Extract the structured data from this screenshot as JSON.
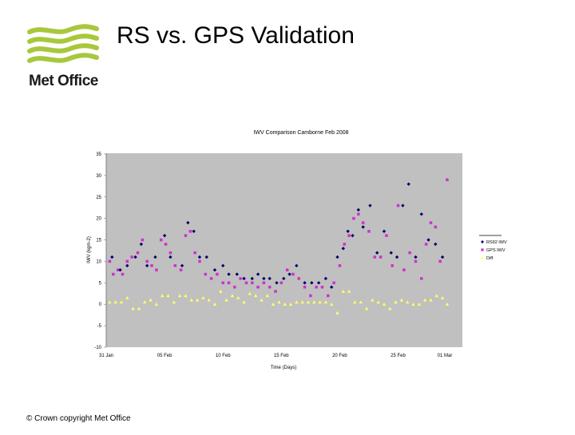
{
  "slide": {
    "title": "RS vs. GPS Validation",
    "logo_text": "Met Office",
    "footer": "© Crown copyright   Met Office"
  },
  "chart_data": {
    "type": "scatter",
    "title": "IWV Comparison Camborne Feb 2008",
    "xlabel": "Time (Days)",
    "ylabel": "IWV (kgm-2)",
    "ylim": [
      -10,
      35
    ],
    "yticks": [
      35,
      30,
      25,
      20,
      15,
      10,
      5,
      0,
      -5,
      -10
    ],
    "xticks": [
      "31 Jan",
      "05 Feb",
      "10 Feb",
      "15 Feb",
      "20 Feb",
      "25 Feb",
      "01 Mar"
    ],
    "xtick_days": [
      0,
      5,
      10,
      15,
      20,
      25,
      29
    ],
    "xlim_days": [
      0,
      29.4
    ],
    "grid": false,
    "legend_position": "right",
    "plot_background": "#c0c0c0",
    "series": [
      {
        "name": "RS92 IWV",
        "color": "#000066",
        "marker": "diamond",
        "x": [
          0.5,
          1.2,
          1.8,
          2.5,
          3.0,
          3.5,
          4.2,
          5.0,
          5.5,
          6.5,
          7.0,
          7.5,
          8.0,
          8.6,
          9.3,
          10.0,
          10.5,
          11.2,
          11.8,
          12.5,
          13.0,
          13.5,
          14.0,
          14.6,
          15.2,
          15.7,
          16.3,
          17.0,
          17.6,
          18.2,
          18.8,
          19.3,
          19.8,
          20.3,
          20.7,
          21.1,
          21.6,
          22.0,
          22.6,
          23.2,
          23.8,
          24.4,
          24.9,
          25.4,
          25.9,
          26.5,
          27.0,
          27.6,
          28.2,
          28.8
        ],
        "values": [
          11,
          8,
          9,
          11,
          14,
          9,
          11,
          16,
          11,
          9,
          19,
          17,
          11,
          11,
          8,
          9,
          7,
          7,
          6,
          6,
          7,
          6,
          6,
          5,
          6,
          7,
          9,
          5,
          5,
          5,
          6,
          4,
          11,
          13,
          17,
          16,
          22,
          18,
          23,
          12,
          17,
          12,
          11,
          23,
          28,
          11,
          21,
          15,
          14,
          11
        ]
      },
      {
        "name": "GPS IWV",
        "color": "#cc33cc",
        "marker": "square",
        "x": [
          0.3,
          0.6,
          1.0,
          1.4,
          1.8,
          2.2,
          2.7,
          3.1,
          3.5,
          3.9,
          4.3,
          4.7,
          5.1,
          5.5,
          5.9,
          6.4,
          6.8,
          7.2,
          7.6,
          8.0,
          8.5,
          9.0,
          9.5,
          10.0,
          10.5,
          11.0,
          11.5,
          12.0,
          12.5,
          13.0,
          13.5,
          14.0,
          14.5,
          15.0,
          15.5,
          16.0,
          16.5,
          17.0,
          17.5,
          18.0,
          18.5,
          19.0,
          19.5,
          20.0,
          20.4,
          20.8,
          21.2,
          21.6,
          22.0,
          22.5,
          23.0,
          23.5,
          24.0,
          24.5,
          25.0,
          25.5,
          26.0,
          26.5,
          27.0,
          27.4,
          27.8,
          28.2,
          28.6,
          29.2
        ],
        "values": [
          10,
          7,
          8,
          7,
          10,
          11,
          12,
          15,
          10,
          9,
          8,
          15,
          14,
          12,
          9,
          8,
          16,
          17,
          12,
          10,
          7,
          6,
          7,
          5,
          5,
          4,
          6,
          5,
          5,
          4,
          5,
          4,
          3,
          5,
          8,
          7,
          6,
          4,
          2,
          4,
          4,
          2,
          5,
          9,
          14,
          16,
          20,
          21,
          19,
          17,
          11,
          11,
          16,
          9,
          23,
          8,
          12,
          10,
          6,
          14,
          19,
          18,
          10,
          29
        ]
      },
      {
        "name": "Diff",
        "color": "#ffff66",
        "marker": "triangle",
        "x": [
          0.3,
          0.8,
          1.3,
          1.8,
          2.3,
          2.8,
          3.3,
          3.8,
          4.3,
          4.8,
          5.3,
          5.8,
          6.3,
          6.8,
          7.3,
          7.8,
          8.3,
          8.8,
          9.3,
          9.8,
          10.3,
          10.8,
          11.3,
          11.8,
          12.3,
          12.8,
          13.3,
          13.8,
          14.3,
          14.8,
          15.3,
          15.8,
          16.3,
          16.8,
          17.3,
          17.8,
          18.3,
          18.8,
          19.3,
          19.8,
          20.3,
          20.8,
          21.3,
          21.8,
          22.3,
          22.8,
          23.3,
          23.8,
          24.3,
          24.8,
          25.3,
          25.8,
          26.3,
          26.8,
          27.3,
          27.8,
          28.3,
          28.8,
          29.2
        ],
        "values": [
          0.5,
          0.5,
          0.5,
          1.5,
          -1,
          -1,
          0.5,
          1,
          0,
          2,
          2,
          0.5,
          2,
          2,
          1,
          1,
          1.5,
          1,
          0,
          3,
          1,
          2,
          1.5,
          0.5,
          2.5,
          2,
          1,
          2,
          0,
          0.5,
          0,
          0,
          0.5,
          0.5,
          0.5,
          0.5,
          0.5,
          0.5,
          0,
          -2,
          3,
          3,
          0.5,
          0.5,
          -1,
          1,
          0.5,
          0,
          -1,
          0.5,
          1,
          0.5,
          0,
          0,
          1,
          1,
          2,
          1.5,
          0
        ]
      }
    ]
  }
}
